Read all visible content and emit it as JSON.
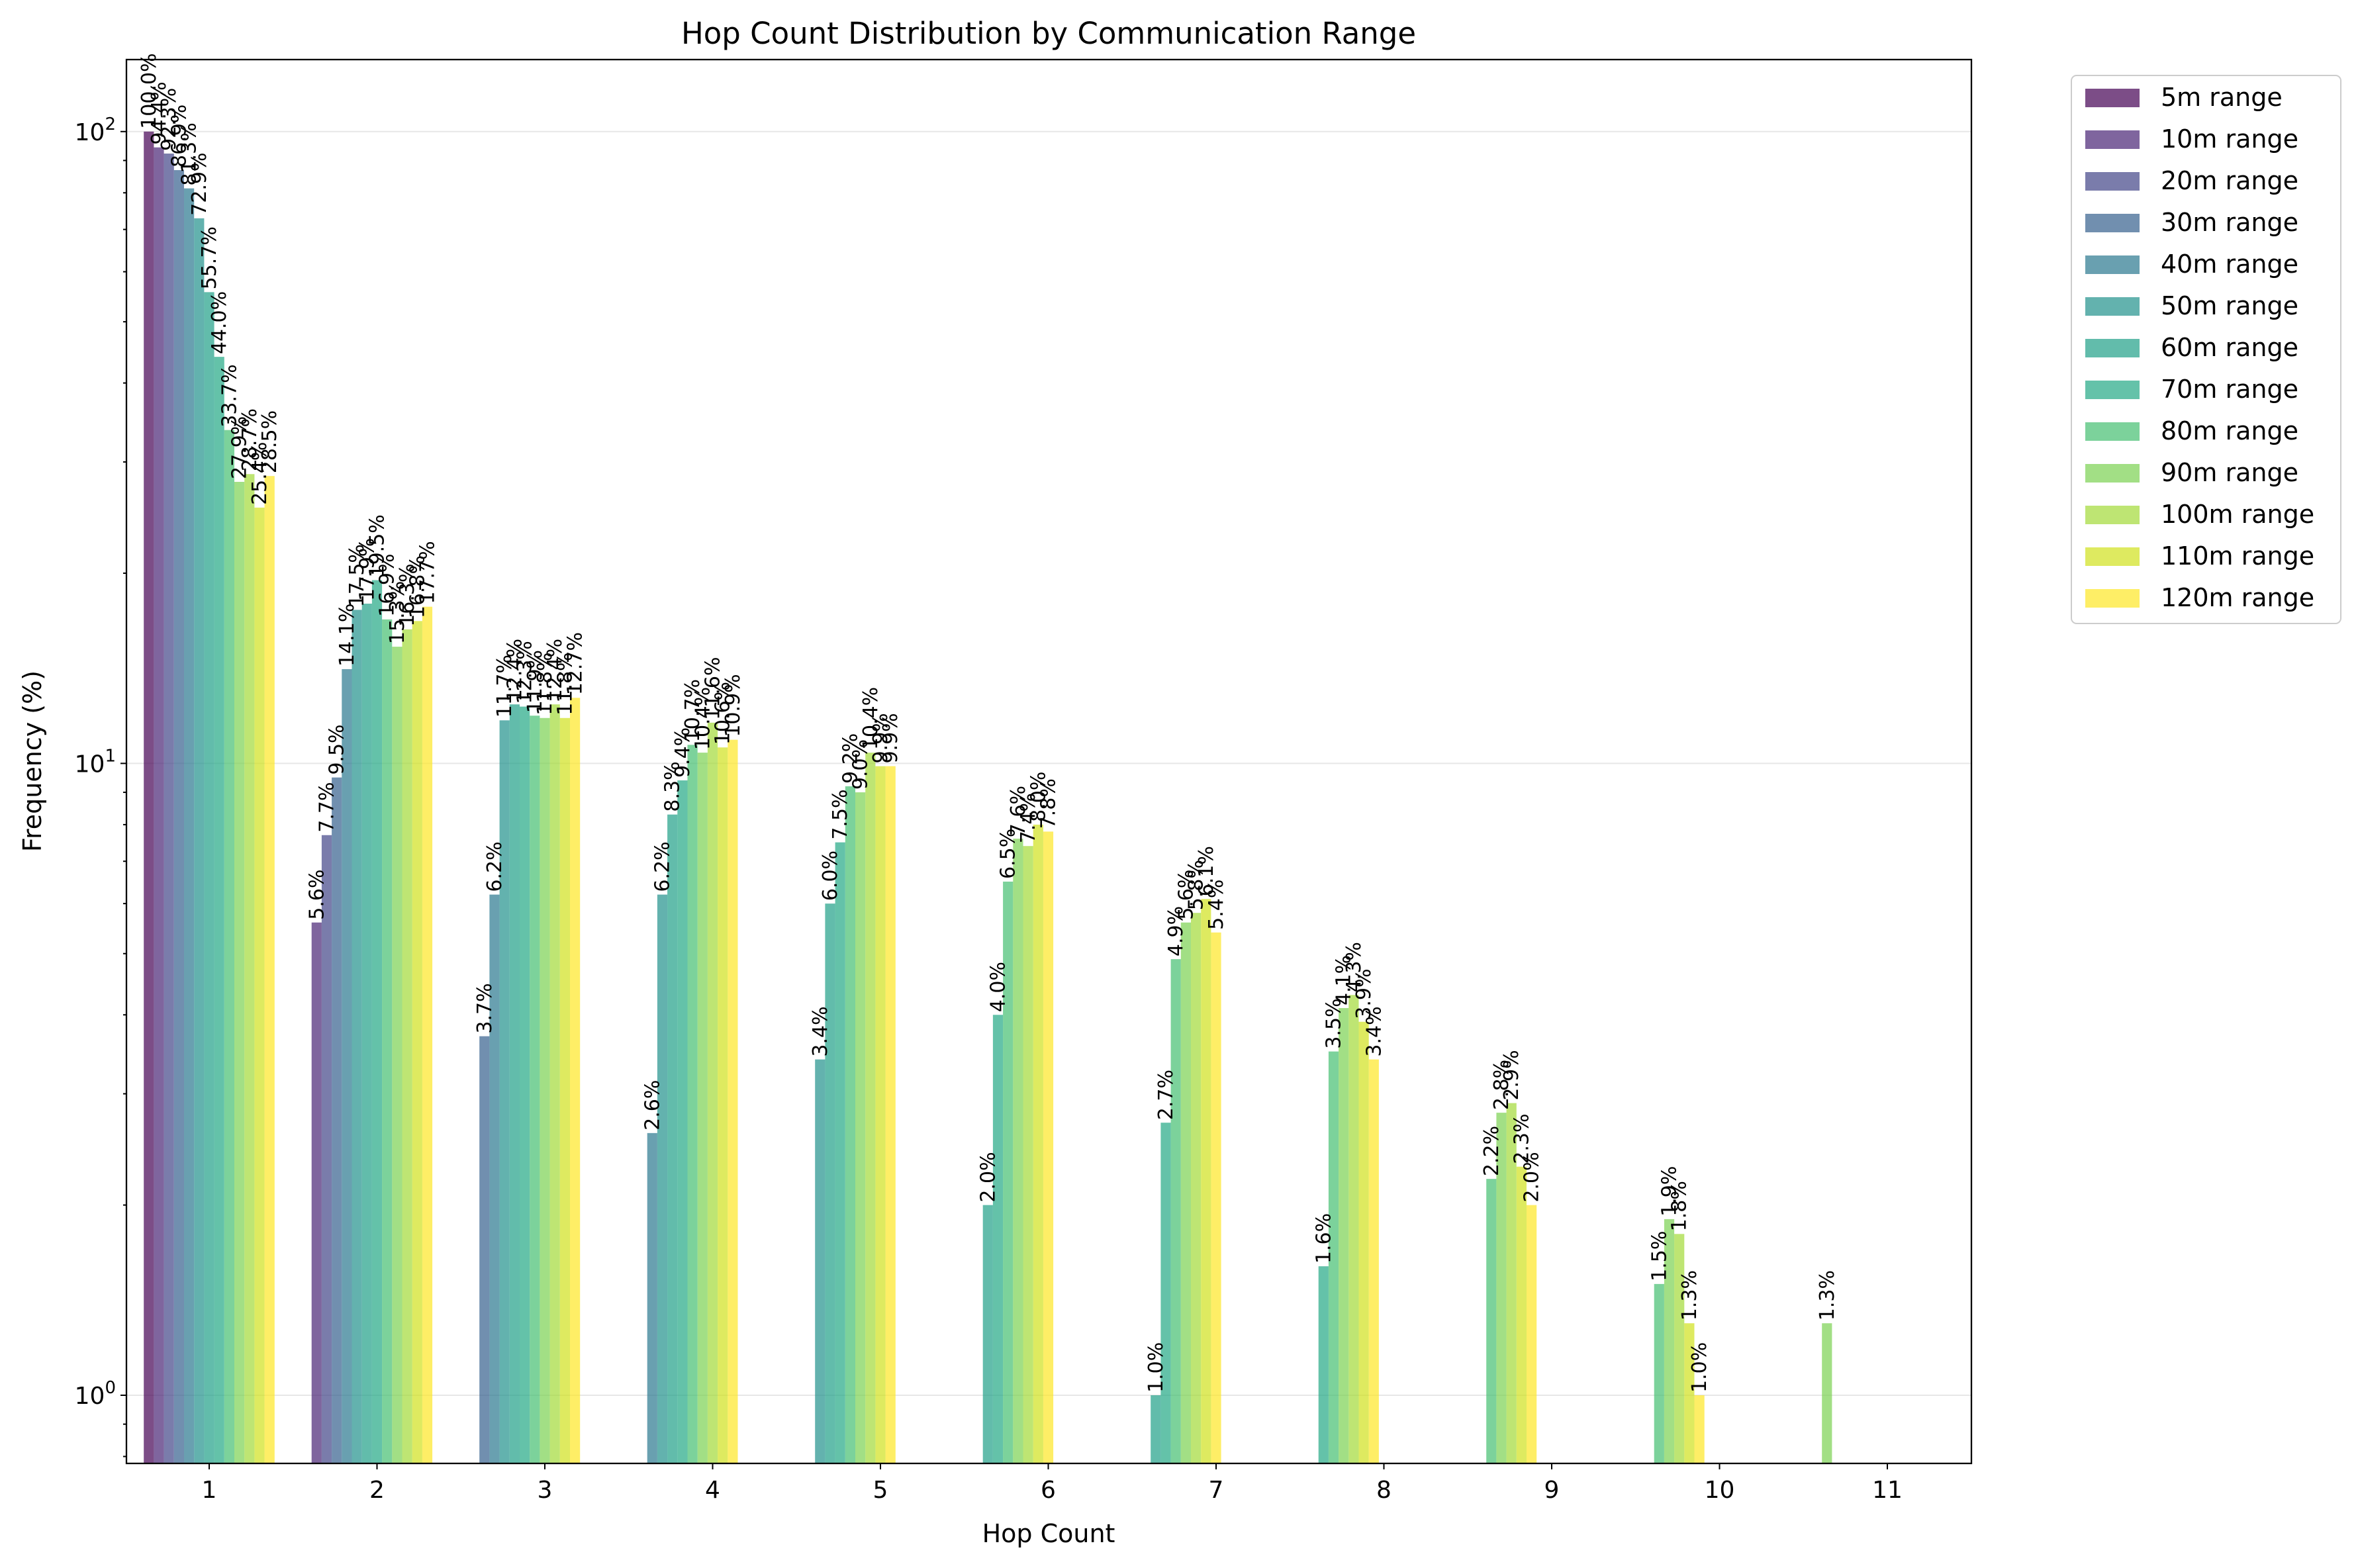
{
  "chart_data": {
    "type": "bar",
    "title": "Hop Count Distribution by Communication Range",
    "xlabel": "Hop Count",
    "ylabel": "Frequency (%)",
    "yscale": "log",
    "ylim": [
      0.78,
      130
    ],
    "y_ticks": [
      {
        "value": 1,
        "base": "10",
        "exp": "0"
      },
      {
        "value": 10,
        "base": "10",
        "exp": "1"
      },
      {
        "value": 100,
        "base": "10",
        "exp": "2"
      }
    ],
    "grid": "horizontal",
    "legend_position": "outside top-right",
    "categories": [
      "1",
      "2",
      "3",
      "4",
      "5",
      "6",
      "7",
      "8",
      "9",
      "10",
      "11"
    ],
    "series": [
      {
        "name": "5m range",
        "color": "#440154",
        "values": [
          100.0,
          null,
          null,
          null,
          null,
          null,
          null,
          null,
          null,
          null,
          null
        ],
        "labels": [
          "100.0%",
          "",
          "",
          "",
          "",
          "",
          "",
          "",
          "",
          "",
          ""
        ]
      },
      {
        "name": "10m range",
        "color": "#482475",
        "values": [
          94.4,
          5.6,
          null,
          null,
          null,
          null,
          null,
          null,
          null,
          null,
          null
        ],
        "labels": [
          "94.4%",
          "5.6%",
          "",
          "",
          "",
          "",
          "",
          "",
          "",
          "",
          ""
        ]
      },
      {
        "name": "20m range",
        "color": "#414487",
        "values": [
          92.3,
          7.7,
          null,
          null,
          null,
          null,
          null,
          null,
          null,
          null,
          null
        ],
        "labels": [
          "92.3%",
          "7.7%",
          "",
          "",
          "",
          "",
          "",
          "",
          "",
          "",
          ""
        ]
      },
      {
        "name": "30m range",
        "color": "#355f8d",
        "values": [
          86.9,
          9.5,
          3.7,
          null,
          null,
          null,
          null,
          null,
          null,
          null,
          null
        ],
        "labels": [
          "86.9%",
          "9.5%",
          "3.7%",
          "",
          "",
          "",
          "",
          "",
          "",
          "",
          ""
        ]
      },
      {
        "name": "40m range",
        "color": "#2a788e",
        "values": [
          81.3,
          14.1,
          6.2,
          2.6,
          null,
          null,
          null,
          null,
          null,
          null,
          null
        ],
        "labels": [
          "81.3%",
          "14.1%",
          "6.2%",
          "2.6%",
          "",
          "",
          "",
          "",
          "",
          "",
          ""
        ]
      },
      {
        "name": "50m range",
        "color": "#21918c",
        "values": [
          72.9,
          17.5,
          11.7,
          6.2,
          3.4,
          null,
          null,
          null,
          null,
          null,
          null
        ],
        "labels": [
          "72.9%",
          "17.5%",
          "11.7%",
          "6.2%",
          "3.4%",
          "",
          "",
          "",
          "",
          "",
          ""
        ]
      },
      {
        "name": "60m range",
        "color": "#1fa088",
        "values": [
          55.7,
          17.9,
          12.4,
          8.3,
          6.0,
          2.0,
          1.0,
          null,
          null,
          null,
          null
        ],
        "labels": [
          "55.7%",
          "17.9%",
          "12.4%",
          "8.3%",
          "6.0%",
          "2.0%",
          "1.0%",
          "",
          "",
          "",
          ""
        ]
      },
      {
        "name": "70m range",
        "color": "#22a884",
        "values": [
          44.0,
          19.5,
          12.3,
          9.4,
          7.5,
          4.0,
          2.7,
          1.6,
          null,
          null,
          null
        ],
        "labels": [
          "44.0%",
          "19.5%",
          "12.3%",
          "9.4%",
          "7.5%",
          "4.0%",
          "2.7%",
          "1.6%",
          "",
          "",
          ""
        ]
      },
      {
        "name": "80m range",
        "color": "#44bf70",
        "values": [
          33.7,
          16.9,
          11.9,
          10.7,
          9.2,
          6.5,
          4.9,
          3.5,
          2.2,
          1.5,
          null
        ],
        "labels": [
          "33.7%",
          "16.9%",
          "11.9%",
          "10.7%",
          "9.2%",
          "6.5%",
          "4.9%",
          "3.5%",
          "2.2%",
          "1.5%",
          ""
        ]
      },
      {
        "name": "90m range",
        "color": "#7ad151",
        "values": [
          27.9,
          15.3,
          11.8,
          10.4,
          9.0,
          7.6,
          5.6,
          4.1,
          2.8,
          1.9,
          1.3
        ],
        "labels": [
          "27.9%",
          "15.3%",
          "11.8%",
          "10.4%",
          "9.0%",
          "7.6%",
          "5.6%",
          "4.1%",
          "2.8%",
          "1.9%",
          "1.3%"
        ]
      },
      {
        "name": "100m range",
        "color": "#a2da37",
        "values": [
          28.7,
          16.3,
          12.4,
          11.6,
          10.4,
          7.4,
          5.8,
          4.3,
          2.9,
          1.8,
          null
        ],
        "labels": [
          "28.7%",
          "16.3%",
          "12.4%",
          "11.6%",
          "10.4%",
          "7.4%",
          "5.8%",
          "4.3%",
          "2.9%",
          "1.8%",
          ""
        ]
      },
      {
        "name": "110m range",
        "color": "#d0e11c",
        "values": [
          25.4,
          16.8,
          11.8,
          10.6,
          9.9,
          8.0,
          6.1,
          3.9,
          2.3,
          1.3,
          null
        ],
        "labels": [
          "25.4%",
          "16.8%",
          "11.8%",
          "10.6%",
          "9.9%",
          "8.0%",
          "6.1%",
          "3.9%",
          "2.3%",
          "1.3%",
          ""
        ]
      },
      {
        "name": "120m range",
        "color": "#fde725",
        "values": [
          28.5,
          17.7,
          12.7,
          10.9,
          9.9,
          7.8,
          5.4,
          3.4,
          2.0,
          1.0,
          null
        ],
        "labels": [
          "28.5%",
          "17.7%",
          "12.7%",
          "10.9%",
          "9.9%",
          "7.8%",
          "5.4%",
          "3.4%",
          "2.0%",
          "1.0%",
          ""
        ]
      }
    ]
  }
}
